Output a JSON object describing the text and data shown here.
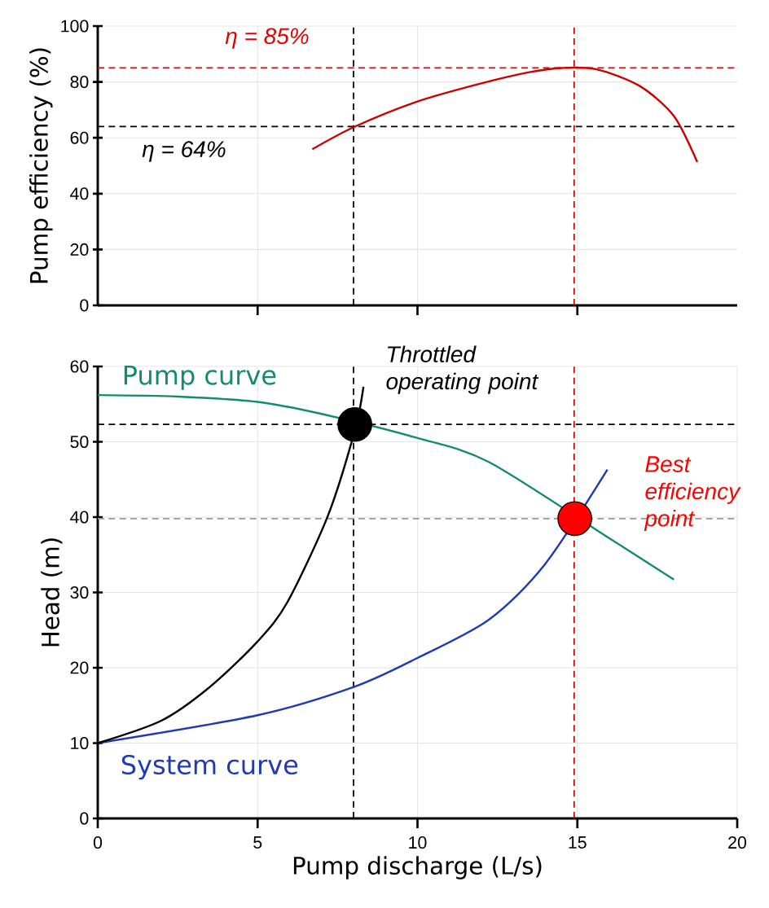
{
  "chart_data": [
    {
      "type": "line",
      "ylabel": "Pump efficiency (%)",
      "xlim": [
        0,
        20
      ],
      "ylim": [
        0,
        100
      ],
      "xticks": [
        {
          "value": 5,
          "label": null
        },
        {
          "value": 10,
          "label": null
        },
        {
          "value": 15,
          "label": null
        }
      ],
      "yticks": [
        0,
        20,
        40,
        60,
        80,
        100
      ],
      "tick_labels": "y",
      "grid": true,
      "series": [
        {
          "color": "#cc0000",
          "x": [
            6.71,
            8.04,
            10,
            12,
            13.5,
            14.53,
            15.6,
            16.94,
            18.01,
            18.75
          ],
          "values": [
            55.9,
            64,
            73,
            79.5,
            83.5,
            85,
            84.5,
            78.6,
            67.9,
            51.3
          ]
        }
      ],
      "ref_lines": [
        {
          "axis": "y",
          "value": 85,
          "label": "η = 85%",
          "color": "#e60000",
          "line_style": "dashed"
        },
        {
          "axis": "y",
          "value": 64,
          "label": "η = 64%",
          "color": "#000000",
          "line_style": "dashed"
        },
        {
          "axis": "x",
          "value": 8,
          "color": "#000000",
          "line_style": "dashed"
        },
        {
          "axis": "x",
          "value": 14.9,
          "color": "#cc0000",
          "line_style": "dashed"
        }
      ]
    },
    {
      "type": "line",
      "xlabel": "Pump discharge (L/s)",
      "ylabel": "Head (m)",
      "xlim": [
        0,
        20
      ],
      "ylim": [
        0,
        60
      ],
      "xticks": [
        0,
        5,
        10,
        15,
        20
      ],
      "yticks": [
        0,
        10,
        20,
        30,
        40,
        50,
        60
      ],
      "grid": true,
      "series": [
        {
          "name": "Pump curve",
          "color": "#138a72",
          "x": [
            0,
            2.5,
            5,
            7,
            10,
            12.24,
            16,
            18.02
          ],
          "values": [
            56.2,
            56,
            55.3,
            53.7,
            50.5,
            47.3,
            37.2,
            31.7
          ]
        },
        {
          "name": "System curve",
          "color": "#1f3ab5",
          "x": [
            0,
            5,
            8.04,
            10,
            12.24,
            13.98,
            15.94
          ],
          "values": [
            10,
            13.7,
            17.5,
            21.3,
            26.4,
            33.7,
            46.3
          ]
        },
        {
          "color": "#000000",
          "x": [
            0,
            2,
            3.52,
            5,
            5.93,
            7.2,
            8.04,
            8.31
          ],
          "values": [
            10,
            13,
            17.5,
            23.5,
            28.7,
            40.2,
            51.5,
            57.3
          ]
        },
        {
          "type": "scatter",
          "name": "Throttled operating point",
          "color": "#000000",
          "marker": "circle",
          "x": [
            8.04
          ],
          "values": [
            52.3
          ]
        },
        {
          "type": "scatter",
          "name": "Best efficiency point",
          "color": "#ff0000",
          "marker": "circle",
          "x": [
            14.92
          ],
          "values": [
            39.8
          ]
        }
      ],
      "ref_lines": [
        {
          "axis": "x",
          "value": 8,
          "color": "#000000",
          "line_style": "dashed"
        },
        {
          "axis": "x",
          "value": 14.9,
          "color": "#cc0000",
          "line_style": "dashed"
        },
        {
          "axis": "y",
          "value": 52.3,
          "color": "#000000",
          "line_style": "dashed"
        },
        {
          "axis": "y",
          "value": 39.8,
          "color": "#999999",
          "line_style": "dashed"
        }
      ]
    }
  ]
}
